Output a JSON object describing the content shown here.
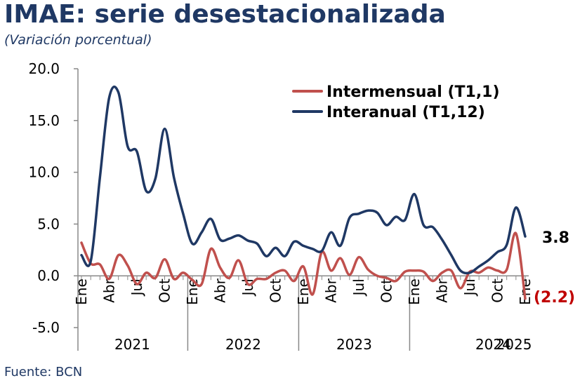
{
  "title": "IMAE: serie desestacionalizada",
  "subtitle": "(Variación porcentual)",
  "source": "Fuente: BCN",
  "chart_data": {
    "type": "line",
    "ylim": [
      -5,
      20
    ],
    "yticks": [
      "20.0",
      "15.0",
      "10.0",
      "5.0",
      "0.0",
      "-5.0"
    ],
    "ytick_values": [
      20,
      15,
      10,
      5,
      0,
      -5
    ],
    "month_labels": [
      "Ene",
      "Abr",
      "Jul",
      "Oct",
      "Ene",
      "Abr",
      "Jul",
      "Oct",
      "Ene",
      "Abr",
      "Jul",
      "Oct",
      "Ene",
      "Abr",
      "Jul",
      "Oct",
      "Ene"
    ],
    "year_labels": [
      "2021",
      "2022",
      "2023",
      "2024",
      "2025"
    ],
    "x": [
      "2021-01",
      "2021-02",
      "2021-03",
      "2021-04",
      "2021-05",
      "2021-06",
      "2021-07",
      "2021-08",
      "2021-09",
      "2021-10",
      "2021-11",
      "2021-12",
      "2022-01",
      "2022-02",
      "2022-03",
      "2022-04",
      "2022-05",
      "2022-06",
      "2022-07",
      "2022-08",
      "2022-09",
      "2022-10",
      "2022-11",
      "2022-12",
      "2023-01",
      "2023-02",
      "2023-03",
      "2023-04",
      "2023-05",
      "2023-06",
      "2023-07",
      "2023-08",
      "2023-09",
      "2023-10",
      "2023-11",
      "2023-12",
      "2024-01",
      "2024-02",
      "2024-03",
      "2024-04",
      "2024-05",
      "2024-06",
      "2024-07",
      "2024-08",
      "2024-09",
      "2024-10",
      "2024-11",
      "2024-12",
      "2025-01"
    ],
    "series": [
      {
        "name": "Intermensual (T1,1)",
        "color": "#c0504d",
        "values": [
          3.2,
          1.2,
          1.1,
          -0.3,
          2.0,
          1.0,
          -0.8,
          0.3,
          -0.2,
          1.6,
          -0.3,
          0.3,
          -0.4,
          -0.8,
          2.6,
          0.8,
          -0.2,
          1.5,
          -0.8,
          -0.3,
          -0.3,
          0.3,
          0.5,
          -0.5,
          0.9,
          -1.8,
          2.3,
          0.5,
          1.7,
          0.1,
          1.8,
          0.6,
          0,
          -0.2,
          -0.5,
          0.4,
          0.5,
          0.4,
          -0.5,
          0.3,
          0.5,
          -1.2,
          0.4,
          0.3,
          0.8,
          0.5,
          0.6,
          4.1,
          -2.2
        ]
      },
      {
        "name": "Interanual (T1,12)",
        "color": "#1f3864",
        "values": [
          2.0,
          1.4,
          9.5,
          17.2,
          17.7,
          12.5,
          12.0,
          8.2,
          9.4,
          14.2,
          9.5,
          6.0,
          3.1,
          4.2,
          5.5,
          3.5,
          3.6,
          3.9,
          3.4,
          3.1,
          1.9,
          2.7,
          1.9,
          3.3,
          2.9,
          2.6,
          2.4,
          4.2,
          2.9,
          5.6,
          6.0,
          6.3,
          6.1,
          4.9,
          5.7,
          5.4,
          7.9,
          4.9,
          4.7,
          3.5,
          2.0,
          0.5,
          0.3,
          0.9,
          1.5,
          2.3,
          3.0,
          6.6,
          3.8
        ]
      }
    ],
    "end_labels": {
      "interanual": "3.8",
      "intermensual": "(2.2)"
    },
    "legend_position": "top-right",
    "grid": false
  }
}
